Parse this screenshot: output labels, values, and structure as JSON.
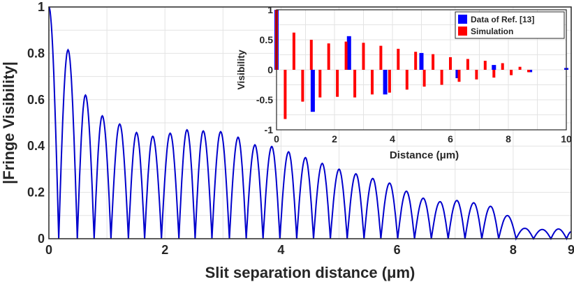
{
  "chart_data": [
    {
      "type": "line",
      "xlabel": "Slit separation distance (μm)",
      "ylabel": "|Fringe Visibility|",
      "xlim": [
        0,
        9
      ],
      "ylim": [
        0,
        1
      ],
      "x_ticks": [
        "0",
        "2",
        "4",
        "6",
        "8",
        "9"
      ],
      "y_ticks": [
        "0",
        "0.2",
        "0.4",
        "0.6",
        "0.8",
        "1"
      ],
      "grid": true,
      "series_color": "#0000cc",
      "peaks": [
        {
          "x": 0.0,
          "y": 1.0
        },
        {
          "x": 0.33,
          "y": 0.815
        },
        {
          "x": 0.63,
          "y": 0.62
        },
        {
          "x": 0.92,
          "y": 0.53
        },
        {
          "x": 1.22,
          "y": 0.495
        },
        {
          "x": 1.51,
          "y": 0.458
        },
        {
          "x": 1.79,
          "y": 0.442
        },
        {
          "x": 2.09,
          "y": 0.455
        },
        {
          "x": 2.38,
          "y": 0.47
        },
        {
          "x": 2.66,
          "y": 0.465
        },
        {
          "x": 2.96,
          "y": 0.462
        },
        {
          "x": 3.26,
          "y": 0.438
        },
        {
          "x": 3.55,
          "y": 0.405
        },
        {
          "x": 3.84,
          "y": 0.398
        },
        {
          "x": 4.13,
          "y": 0.375
        },
        {
          "x": 4.42,
          "y": 0.35
        },
        {
          "x": 4.71,
          "y": 0.325
        },
        {
          "x": 5.0,
          "y": 0.3
        },
        {
          "x": 5.29,
          "y": 0.28
        },
        {
          "x": 5.58,
          "y": 0.26
        },
        {
          "x": 5.87,
          "y": 0.24
        },
        {
          "x": 6.16,
          "y": 0.205
        },
        {
          "x": 6.45,
          "y": 0.175
        },
        {
          "x": 6.74,
          "y": 0.16
        },
        {
          "x": 7.03,
          "y": 0.165
        },
        {
          "x": 7.32,
          "y": 0.155
        },
        {
          "x": 7.61,
          "y": 0.14
        },
        {
          "x": 7.9,
          "y": 0.1
        },
        {
          "x": 8.2,
          "y": 0.045
        },
        {
          "x": 8.5,
          "y": 0.04
        },
        {
          "x": 8.78,
          "y": 0.042
        },
        {
          "x": 9.0,
          "y": 0.03
        }
      ],
      "zeros": [
        0.17,
        0.49,
        0.78,
        1.07,
        1.37,
        1.65,
        1.94,
        2.24,
        2.52,
        2.81,
        3.11,
        3.4,
        3.69,
        3.98,
        4.27,
        4.56,
        4.85,
        5.14,
        5.43,
        5.72,
        6.01,
        6.3,
        6.59,
        6.88,
        7.17,
        7.46,
        7.75,
        8.05,
        8.35,
        8.65,
        8.92
      ]
    },
    {
      "type": "bar",
      "xlabel": "Distance (μm)",
      "ylabel": "Visibility",
      "xlim": [
        0,
        10
      ],
      "ylim": [
        -1,
        1
      ],
      "x_ticks": [
        "0",
        "2",
        "4",
        "6",
        "8",
        "10"
      ],
      "y_ticks": [
        "-1",
        "-0.5",
        "0",
        "0.5",
        "1"
      ],
      "grid": true,
      "legend_position": "top-right",
      "series": [
        {
          "name": "Data of Ref. [13]",
          "color": "#0000ff",
          "x": [
            0.0,
            1.25,
            2.5,
            3.75,
            5.0,
            6.25,
            7.5,
            8.75,
            10.0
          ],
          "values": [
            1.0,
            -0.7,
            0.56,
            -0.41,
            0.28,
            -0.14,
            0.08,
            -0.04,
            0.03
          ]
        },
        {
          "name": "Simulation",
          "color": "#ff0000",
          "x": [
            0.0,
            0.3,
            0.6,
            0.9,
            1.2,
            1.5,
            1.8,
            2.1,
            2.4,
            2.7,
            3.0,
            3.3,
            3.6,
            3.9,
            4.2,
            4.5,
            4.8,
            5.1,
            5.4,
            5.7,
            6.0,
            6.3,
            6.6,
            6.9,
            7.2,
            7.5,
            7.8,
            8.1,
            8.4,
            8.7
          ],
          "values": [
            1.0,
            -0.82,
            0.62,
            -0.53,
            0.5,
            -0.46,
            0.44,
            -0.45,
            0.47,
            -0.46,
            0.45,
            -0.41,
            0.4,
            -0.38,
            0.35,
            -0.33,
            0.3,
            -0.28,
            0.26,
            -0.25,
            0.21,
            -0.2,
            0.18,
            -0.16,
            0.15,
            -0.13,
            0.11,
            -0.09,
            0.05,
            -0.04
          ]
        }
      ]
    }
  ]
}
